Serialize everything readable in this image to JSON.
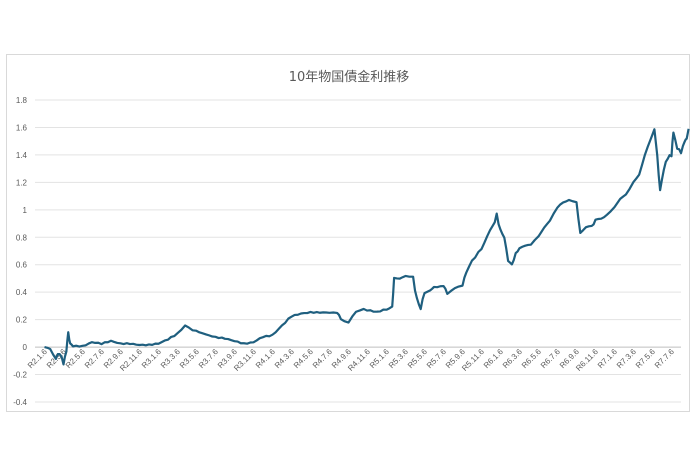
{
  "chart_data": {
    "type": "line",
    "title": "10年物国債金利推移",
    "xlabel": "",
    "ylabel": "",
    "ylim": [
      -0.4,
      1.8
    ],
    "yticks": [
      1.8,
      1.6,
      1.4,
      1.2,
      1,
      0.8,
      0.6,
      0.4,
      0.2,
      0,
      -0.2,
      -0.4
    ],
    "ytick_labels": [
      "1.8",
      "1.6",
      "1.4",
      "1.2",
      "1",
      "0.8",
      "0.6",
      "0.4",
      "0.2",
      "0",
      "-0.2",
      "-0.4"
    ],
    "grid": true,
    "legend": "none",
    "line_color": "#1f5f7f",
    "x_categories": [
      "R2.1.6",
      "R2.3.6",
      "R2.5.6",
      "R2.7.6",
      "R2.9.6",
      "R2.11.6",
      "R3.1.6",
      "R3.3.6",
      "R3.5.6",
      "R3.7.6",
      "R3.9.6",
      "R3.11.6",
      "R4.1.6",
      "R4.3.6",
      "R4.5.6",
      "R4.7.6",
      "R4.9.6",
      "R4.11.6",
      "R5.1.6",
      "R5.3.6",
      "R5.5.6",
      "R5.7.6",
      "R5.9.6",
      "R5.11.6",
      "R6.1.6",
      "R6.3.6",
      "R6.5.6",
      "R6.7.6",
      "R6.9.6",
      "R6.11.6",
      "R7.1.6",
      "R7.3.6",
      "R7.5.6",
      "R7.7.6"
    ],
    "series": [
      {
        "values": [
          [
            0.0,
            0.0
          ],
          [
            0.3,
            -0.01
          ],
          [
            0.6,
            -0.08
          ],
          [
            0.8,
            -0.04
          ],
          [
            1.0,
            -0.12
          ],
          [
            1.15,
            -0.02
          ],
          [
            1.25,
            0.1
          ],
          [
            1.35,
            0.03
          ],
          [
            1.5,
            0.01
          ],
          [
            2.0,
            0.01
          ],
          [
            2.5,
            0.04
          ],
          [
            3.0,
            0.03
          ],
          [
            3.5,
            0.05
          ],
          [
            4.0,
            0.03
          ],
          [
            4.5,
            0.03
          ],
          [
            5.0,
            0.02
          ],
          [
            5.5,
            0.02
          ],
          [
            6.0,
            0.03
          ],
          [
            6.5,
            0.06
          ],
          [
            7.0,
            0.1
          ],
          [
            7.4,
            0.16
          ],
          [
            7.8,
            0.12
          ],
          [
            8.5,
            0.09
          ],
          [
            9.0,
            0.07
          ],
          [
            9.5,
            0.06
          ],
          [
            10.0,
            0.04
          ],
          [
            10.5,
            0.02
          ],
          [
            11.0,
            0.03
          ],
          [
            11.5,
            0.07
          ],
          [
            12.0,
            0.08
          ],
          [
            12.5,
            0.15
          ],
          [
            13.0,
            0.22
          ],
          [
            13.5,
            0.24
          ],
          [
            14.0,
            0.25
          ],
          [
            14.5,
            0.25
          ],
          [
            15.0,
            0.25
          ],
          [
            15.4,
            0.25
          ],
          [
            15.6,
            0.21
          ],
          [
            16.0,
            0.18
          ],
          [
            16.4,
            0.25
          ],
          [
            16.8,
            0.28
          ],
          [
            17.5,
            0.26
          ],
          [
            18.0,
            0.28
          ],
          [
            18.3,
            0.3
          ],
          [
            18.4,
            0.5
          ],
          [
            18.7,
            0.5
          ],
          [
            19.0,
            0.52
          ],
          [
            19.4,
            0.5
          ],
          [
            19.6,
            0.35
          ],
          [
            19.8,
            0.28
          ],
          [
            20.0,
            0.4
          ],
          [
            20.3,
            0.41
          ],
          [
            20.5,
            0.44
          ],
          [
            21.0,
            0.45
          ],
          [
            21.2,
            0.39
          ],
          [
            21.6,
            0.42
          ],
          [
            22.0,
            0.45
          ],
          [
            22.2,
            0.55
          ],
          [
            22.5,
            0.63
          ],
          [
            23.0,
            0.72
          ],
          [
            23.3,
            0.8
          ],
          [
            23.6,
            0.88
          ],
          [
            23.8,
            0.96
          ],
          [
            24.0,
            0.85
          ],
          [
            24.2,
            0.8
          ],
          [
            24.4,
            0.63
          ],
          [
            24.6,
            0.6
          ],
          [
            24.8,
            0.68
          ],
          [
            25.0,
            0.72
          ],
          [
            25.3,
            0.73
          ],
          [
            25.6,
            0.75
          ],
          [
            26.0,
            0.8
          ],
          [
            26.3,
            0.87
          ],
          [
            26.6,
            0.92
          ],
          [
            27.0,
            1.01
          ],
          [
            27.3,
            1.05
          ],
          [
            27.6,
            1.08
          ],
          [
            28.0,
            1.05
          ],
          [
            28.2,
            0.83
          ],
          [
            28.5,
            0.87
          ],
          [
            28.8,
            0.88
          ],
          [
            29.0,
            0.92
          ],
          [
            29.3,
            0.94
          ],
          [
            29.6,
            0.97
          ],
          [
            30.0,
            1.02
          ],
          [
            30.3,
            1.08
          ],
          [
            30.6,
            1.12
          ],
          [
            31.0,
            1.2
          ],
          [
            31.3,
            1.27
          ],
          [
            31.6,
            1.4
          ],
          [
            31.9,
            1.51
          ],
          [
            32.1,
            1.59
          ],
          [
            32.25,
            1.4
          ],
          [
            32.4,
            1.14
          ],
          [
            32.6,
            1.3
          ],
          [
            32.8,
            1.38
          ],
          [
            33.0,
            1.4
          ],
          [
            33.1,
            1.56
          ],
          [
            33.3,
            1.45
          ],
          [
            33.5,
            1.42
          ],
          [
            33.7,
            1.5
          ],
          [
            33.8,
            1.52
          ],
          [
            33.9,
            1.59
          ]
        ]
      }
    ]
  }
}
